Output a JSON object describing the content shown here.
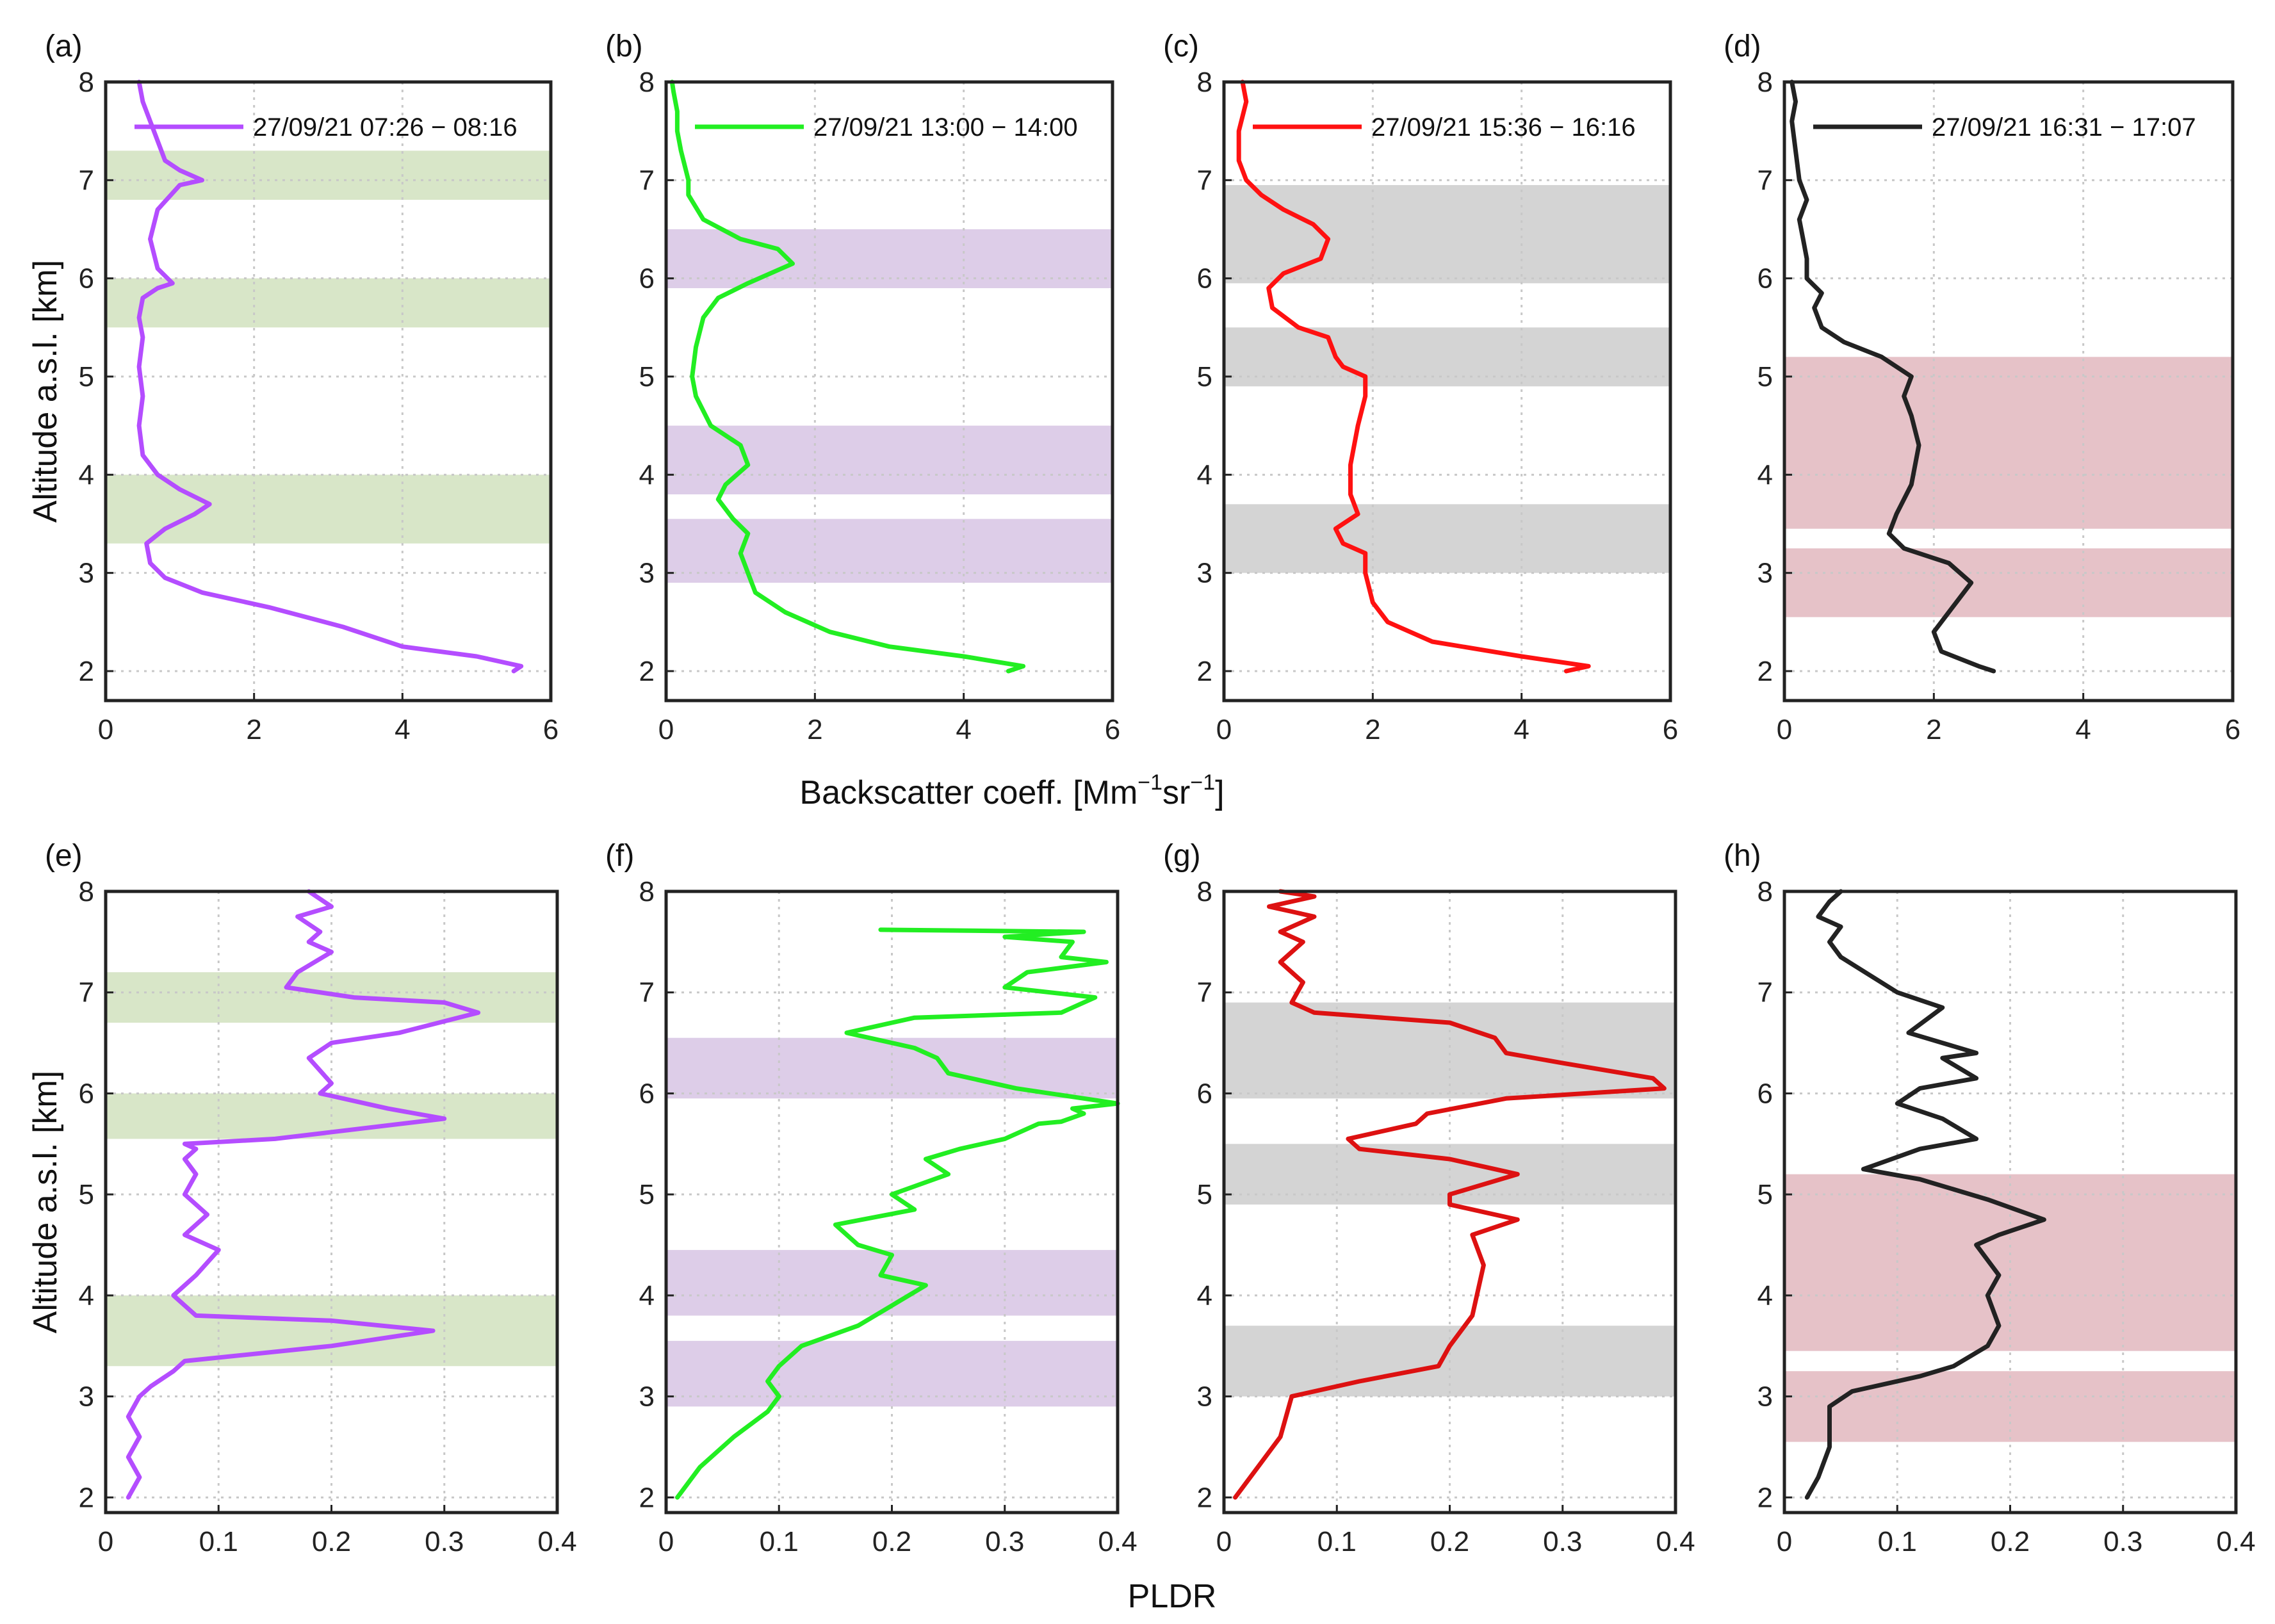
{
  "figure": {
    "top_xlabel": "Backscatter coeff. [Mm",
    "top_xlabel_sup1": "−1",
    "top_xlabel_mid": "sr",
    "top_xlabel_sup2": "−1",
    "top_xlabel_end": "]",
    "bottom_xlabel": "PLDR",
    "ylabel": "Altitude a.s.l. [km]"
  },
  "colors": {
    "purple": "#b44dff",
    "green": "#22ee22",
    "red": "#ff1111",
    "black": "#222222",
    "band_green": "#d8e6c8",
    "band_purple": "#ddcde8",
    "band_gray": "#d4d4d4",
    "band_red": "#e6c2c8"
  },
  "chart_data": [
    {
      "type": "line",
      "panel_label": "(a)",
      "xlabel": "Backscatter coeff. [Mm⁻¹sr⁻¹]",
      "ylabel": "Altitude a.s.l. [km]",
      "xlim": [
        0,
        6
      ],
      "ylim": [
        1.7,
        8
      ],
      "xticks": [
        "0",
        "2",
        "4",
        "6"
      ],
      "yticks": [
        "2",
        "3",
        "4",
        "5",
        "6",
        "7",
        "8"
      ],
      "legend": "27/09/21 07:26 − 08:16",
      "color": "#b44dff",
      "band_color": "#d8e6c8",
      "bands": [
        [
          6.8,
          7.3
        ],
        [
          5.5,
          6.0
        ],
        [
          3.3,
          4.0
        ]
      ],
      "series": [
        {
          "name": "27/09/21 07:26 − 08:16",
          "x": [
            5.5,
            5.6,
            5.0,
            4.0,
            3.2,
            2.2,
            1.3,
            0.8,
            0.6,
            0.55,
            0.8,
            1.2,
            1.4,
            1.0,
            0.7,
            0.5,
            0.45,
            0.5,
            0.45,
            0.5,
            0.45,
            0.5,
            0.7,
            0.9,
            0.7,
            0.6,
            0.7,
            1.0,
            1.3,
            1.0,
            0.8,
            0.6,
            0.5,
            0.45
          ],
          "y": [
            2.0,
            2.05,
            2.15,
            2.25,
            2.45,
            2.65,
            2.8,
            2.95,
            3.1,
            3.3,
            3.45,
            3.6,
            3.7,
            3.85,
            4.0,
            4.2,
            4.5,
            4.8,
            5.1,
            5.4,
            5.6,
            5.8,
            5.9,
            5.95,
            6.1,
            6.4,
            6.7,
            6.95,
            7.0,
            7.1,
            7.2,
            7.6,
            7.8,
            8.0
          ]
        }
      ]
    },
    {
      "type": "line",
      "panel_label": "(b)",
      "xlabel": "Backscatter coeff. [Mm⁻¹sr⁻¹]",
      "ylabel": "",
      "xlim": [
        0,
        6
      ],
      "ylim": [
        1.7,
        8
      ],
      "xticks": [
        "0",
        "2",
        "4",
        "6"
      ],
      "yticks": [
        "2",
        "3",
        "4",
        "5",
        "6",
        "7",
        "8"
      ],
      "legend": "27/09/21 13:00 − 14:00",
      "color": "#22ee22",
      "band_color": "#ddcde8",
      "bands": [
        [
          5.9,
          6.5
        ],
        [
          3.8,
          4.5
        ],
        [
          2.9,
          3.55
        ]
      ],
      "series": [
        {
          "name": "27/09/21 13:00 − 14:00",
          "x": [
            4.6,
            4.8,
            4.0,
            3.0,
            2.2,
            1.6,
            1.2,
            1.1,
            1.0,
            1.1,
            0.9,
            0.7,
            0.8,
            1.1,
            1.0,
            0.6,
            0.4,
            0.35,
            0.4,
            0.5,
            0.7,
            1.1,
            1.7,
            1.5,
            1.0,
            0.5,
            0.3,
            0.3,
            0.2,
            0.15,
            0.15,
            0.1,
            0.08
          ],
          "y": [
            2.0,
            2.05,
            2.15,
            2.25,
            2.4,
            2.6,
            2.8,
            3.0,
            3.2,
            3.4,
            3.55,
            3.75,
            3.9,
            4.1,
            4.3,
            4.5,
            4.8,
            5.0,
            5.3,
            5.6,
            5.8,
            5.95,
            6.15,
            6.3,
            6.4,
            6.6,
            6.85,
            7.0,
            7.3,
            7.5,
            7.7,
            7.9,
            8.0
          ]
        }
      ]
    },
    {
      "type": "line",
      "panel_label": "(c)",
      "xlabel": "Backscatter coeff. [Mm⁻¹sr⁻¹]",
      "ylabel": "",
      "xlim": [
        0,
        6
      ],
      "ylim": [
        1.7,
        8
      ],
      "xticks": [
        "0",
        "2",
        "4",
        "6"
      ],
      "yticks": [
        "2",
        "3",
        "4",
        "5",
        "6",
        "7",
        "8"
      ],
      "legend": "27/09/21 15:36 − 16:16",
      "color": "#ff1111",
      "band_color": "#d4d4d4",
      "bands": [
        [
          5.95,
          6.95
        ],
        [
          4.9,
          5.5
        ],
        [
          3.0,
          3.7
        ]
      ],
      "series": [
        {
          "name": "27/09/21 15:36 − 16:16",
          "x": [
            4.6,
            4.9,
            4.0,
            2.8,
            2.2,
            2.0,
            1.9,
            1.9,
            1.6,
            1.5,
            1.8,
            1.7,
            1.7,
            1.8,
            1.9,
            1.9,
            1.6,
            1.5,
            1.4,
            1.0,
            0.65,
            0.6,
            0.8,
            1.3,
            1.4,
            1.2,
            0.8,
            0.5,
            0.3,
            0.2,
            0.2,
            0.3,
            0.25
          ],
          "y": [
            2.0,
            2.05,
            2.15,
            2.3,
            2.5,
            2.7,
            3.0,
            3.2,
            3.3,
            3.45,
            3.6,
            3.8,
            4.1,
            4.5,
            4.8,
            5.0,
            5.1,
            5.2,
            5.4,
            5.5,
            5.7,
            5.9,
            6.05,
            6.2,
            6.4,
            6.55,
            6.7,
            6.85,
            7.0,
            7.2,
            7.5,
            7.8,
            8.0
          ]
        }
      ]
    },
    {
      "type": "line",
      "panel_label": "(d)",
      "xlabel": "Backscatter coeff. [Mm⁻¹sr⁻¹]",
      "ylabel": "",
      "xlim": [
        0,
        6
      ],
      "ylim": [
        1.7,
        8
      ],
      "xticks": [
        "0",
        "2",
        "4",
        "6"
      ],
      "yticks": [
        "2",
        "3",
        "4",
        "5",
        "6",
        "7",
        "8"
      ],
      "legend": "27/09/21 16:31 − 17:07",
      "color": "#222222",
      "band_color": "#e6c2c8",
      "bands": [
        [
          3.45,
          5.2
        ],
        [
          2.55,
          3.25
        ]
      ],
      "series": [
        {
          "name": "27/09/21 16:31 − 17:07",
          "x": [
            2.8,
            2.6,
            2.1,
            2.0,
            2.3,
            2.5,
            2.2,
            1.6,
            1.4,
            1.5,
            1.7,
            1.8,
            1.7,
            1.6,
            1.7,
            1.3,
            0.8,
            0.5,
            0.4,
            0.5,
            0.3,
            0.3,
            0.25,
            0.2,
            0.3,
            0.2,
            0.15,
            0.1,
            0.15,
            0.1
          ],
          "y": [
            2.0,
            2.05,
            2.2,
            2.4,
            2.7,
            2.9,
            3.1,
            3.25,
            3.4,
            3.6,
            3.9,
            4.3,
            4.6,
            4.8,
            5.0,
            5.2,
            5.35,
            5.5,
            5.7,
            5.85,
            6.0,
            6.2,
            6.4,
            6.6,
            6.8,
            7.0,
            7.3,
            7.6,
            7.8,
            8.0
          ]
        }
      ]
    },
    {
      "type": "line",
      "panel_label": "(e)",
      "xlabel": "PLDR",
      "ylabel": "Altitude a.s.l. [km]",
      "xlim": [
        0,
        0.4
      ],
      "ylim": [
        1.85,
        8
      ],
      "xticks": [
        "0",
        "0.1",
        "0.2",
        "0.3",
        "0.4"
      ],
      "yticks": [
        "2",
        "3",
        "4",
        "5",
        "6",
        "7",
        "8"
      ],
      "color": "#b44dff",
      "band_color": "#d8e6c8",
      "bands": [
        [
          6.7,
          7.2
        ],
        [
          5.55,
          6.0
        ],
        [
          3.3,
          4.0
        ]
      ],
      "series": [
        {
          "name": "27/09/21 07:26 − 08:16",
          "x": [
            0.02,
            0.03,
            0.02,
            0.03,
            0.02,
            0.03,
            0.04,
            0.06,
            0.07,
            0.2,
            0.29,
            0.2,
            0.08,
            0.07,
            0.06,
            0.08,
            0.1,
            0.07,
            0.09,
            0.07,
            0.08,
            0.07,
            0.08,
            0.07,
            0.15,
            0.3,
            0.25,
            0.19,
            0.2,
            0.18,
            0.2,
            0.26,
            0.33,
            0.3,
            0.22,
            0.16,
            0.17,
            0.2,
            0.18,
            0.19,
            0.17,
            0.2,
            0.18
          ],
          "y": [
            2.0,
            2.2,
            2.4,
            2.6,
            2.8,
            3.0,
            3.1,
            3.25,
            3.35,
            3.5,
            3.65,
            3.75,
            3.8,
            3.9,
            4.0,
            4.2,
            4.45,
            4.6,
            4.8,
            5.0,
            5.2,
            5.35,
            5.45,
            5.5,
            5.55,
            5.75,
            5.85,
            6.0,
            6.1,
            6.35,
            6.5,
            6.6,
            6.8,
            6.9,
            6.95,
            7.05,
            7.2,
            7.4,
            7.5,
            7.6,
            7.75,
            7.85,
            8.0
          ]
        }
      ]
    },
    {
      "type": "line",
      "panel_label": "(f)",
      "xlabel": "PLDR",
      "ylabel": "",
      "xlim": [
        0,
        0.4
      ],
      "ylim": [
        1.85,
        8
      ],
      "xticks": [
        "0",
        "0.1",
        "0.2",
        "0.3",
        "0.4"
      ],
      "yticks": [
        "2",
        "3",
        "4",
        "5",
        "6",
        "7",
        "8"
      ],
      "color": "#22ee22",
      "band_color": "#ddcde8",
      "bands": [
        [
          5.95,
          6.55
        ],
        [
          3.8,
          4.45
        ],
        [
          2.9,
          3.55
        ]
      ],
      "series": [
        {
          "name": "27/09/21 13:00 − 14:00",
          "x": [
            0.01,
            0.03,
            0.06,
            0.09,
            0.1,
            0.09,
            0.1,
            0.12,
            0.17,
            0.2,
            0.23,
            0.19,
            0.2,
            0.17,
            0.15,
            0.22,
            0.2,
            0.25,
            0.23,
            0.26,
            0.3,
            0.33,
            0.35,
            0.37,
            0.36,
            0.4,
            0.31,
            0.25,
            0.24,
            0.22,
            0.16,
            0.22,
            0.35,
            0.38,
            0.3,
            0.32,
            0.39,
            0.35,
            0.36,
            0.3,
            0.37,
            0.19
          ],
          "y": [
            2.0,
            2.3,
            2.6,
            2.85,
            3.0,
            3.15,
            3.3,
            3.5,
            3.7,
            3.9,
            4.1,
            4.2,
            4.4,
            4.5,
            4.7,
            4.85,
            5.0,
            5.2,
            5.35,
            5.45,
            5.55,
            5.7,
            5.72,
            5.8,
            5.85,
            5.9,
            6.05,
            6.2,
            6.35,
            6.45,
            6.6,
            6.75,
            6.8,
            6.95,
            7.05,
            7.2,
            7.3,
            7.35,
            7.5,
            7.55,
            7.6,
            7.62
          ]
        }
      ]
    },
    {
      "type": "line",
      "panel_label": "(g)",
      "xlabel": "PLDR",
      "ylabel": "",
      "xlim": [
        0,
        0.4
      ],
      "ylim": [
        1.85,
        8
      ],
      "xticks": [
        "0",
        "0.1",
        "0.2",
        "0.3",
        "0.4"
      ],
      "yticks": [
        "2",
        "3",
        "4",
        "5",
        "6",
        "7",
        "8"
      ],
      "color": "#dd1111",
      "band_color": "#d4d4d4",
      "bands": [
        [
          5.95,
          6.9
        ],
        [
          4.9,
          5.5
        ],
        [
          3.0,
          3.7
        ]
      ],
      "series": [
        {
          "name": "27/09/21 15:36 − 16:16",
          "x": [
            0.01,
            0.03,
            0.05,
            0.06,
            0.12,
            0.19,
            0.2,
            0.22,
            0.23,
            0.22,
            0.26,
            0.2,
            0.2,
            0.26,
            0.2,
            0.12,
            0.11,
            0.17,
            0.18,
            0.25,
            0.39,
            0.38,
            0.3,
            0.25,
            0.24,
            0.2,
            0.08,
            0.06,
            0.07,
            0.05,
            0.07,
            0.05,
            0.08,
            0.06,
            0.04,
            0.08,
            0.05
          ],
          "y": [
            2.0,
            2.3,
            2.6,
            3.0,
            3.15,
            3.3,
            3.5,
            3.8,
            4.3,
            4.6,
            4.75,
            4.9,
            5.0,
            5.2,
            5.35,
            5.45,
            5.55,
            5.7,
            5.8,
            5.95,
            6.05,
            6.15,
            6.3,
            6.4,
            6.55,
            6.7,
            6.8,
            6.9,
            7.1,
            7.3,
            7.5,
            7.6,
            7.75,
            7.8,
            7.85,
            7.95,
            8.0
          ]
        }
      ]
    },
    {
      "type": "line",
      "panel_label": "(h)",
      "xlabel": "PLDR",
      "ylabel": "",
      "xlim": [
        0,
        0.4
      ],
      "ylim": [
        1.85,
        8
      ],
      "xticks": [
        "0",
        "0.1",
        "0.2",
        "0.3",
        "0.4"
      ],
      "yticks": [
        "2",
        "3",
        "4",
        "5",
        "6",
        "7",
        "8"
      ],
      "color": "#222222",
      "band_color": "#e6c2c8",
      "bands": [
        [
          3.45,
          5.2
        ],
        [
          2.55,
          3.25
        ]
      ],
      "series": [
        {
          "name": "27/09/21 16:31 − 17:07",
          "x": [
            0.02,
            0.03,
            0.04,
            0.04,
            0.06,
            0.12,
            0.15,
            0.18,
            0.19,
            0.18,
            0.19,
            0.17,
            0.19,
            0.23,
            0.18,
            0.12,
            0.07,
            0.12,
            0.17,
            0.14,
            0.1,
            0.12,
            0.17,
            0.14,
            0.17,
            0.11,
            0.14,
            0.1,
            0.05,
            0.04,
            0.05,
            0.03,
            0.04,
            0.05
          ],
          "y": [
            2.0,
            2.2,
            2.5,
            2.9,
            3.05,
            3.2,
            3.3,
            3.5,
            3.7,
            4.0,
            4.2,
            4.5,
            4.6,
            4.75,
            4.95,
            5.15,
            5.25,
            5.45,
            5.55,
            5.75,
            5.9,
            6.05,
            6.15,
            6.35,
            6.4,
            6.6,
            6.85,
            7.0,
            7.35,
            7.5,
            7.65,
            7.75,
            7.9,
            8.0
          ]
        }
      ]
    }
  ]
}
